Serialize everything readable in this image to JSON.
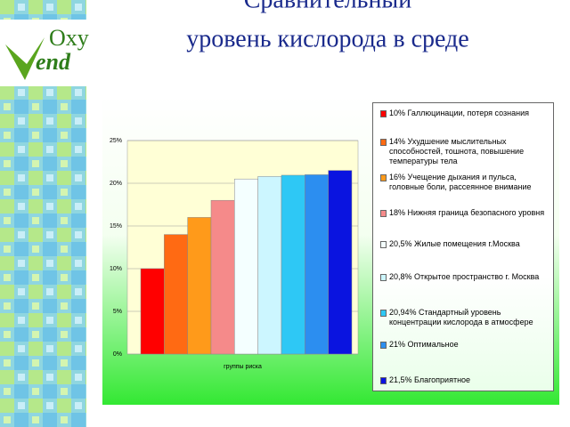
{
  "header": {
    "title_line1": "Сравнительный",
    "title_line2": "уровень кислорода в среде"
  },
  "logo": {
    "top": "Oxy",
    "bottom": "end"
  },
  "chart_data": {
    "type": "bar",
    "categories": [
      "группы риска"
    ],
    "series": [
      {
        "name": "10%     Галлюцинации, потеря сознания",
        "color": "#ff0000",
        "values": [
          10
        ]
      },
      {
        "name": "14% Ухудшение мыслительных способностей, тошнота, повышение температуры тела",
        "color": "#ff6a13",
        "values": [
          14
        ]
      },
      {
        "name": "16% Учещение дыхания и пульса, головные боли, рассеянное внимание",
        "color": "#ff9a1a",
        "values": [
          16
        ]
      },
      {
        "name": " 18% Нижняя граница безопасного уровня",
        "color": "#f58a8a",
        "values": [
          18
        ]
      },
      {
        "name": "20,5% Жилые помещения г.Москва",
        "color": "#f4ffff",
        "values": [
          20.5
        ]
      },
      {
        "name": "20,8% Открытое пространство г. Москва",
        "color": "#ccf6ff",
        "values": [
          20.8
        ]
      },
      {
        "name": "20,94% Стандартный уровень концентрации кислорода в атмосфере",
        "color": "#2ec8f5",
        "values": [
          20.94
        ]
      },
      {
        "name": " 21%  Оптимальное",
        "color": "#2c8ef0",
        "values": [
          21
        ]
      },
      {
        "name": "21,5% Благоприятное",
        "color": "#0a14e0",
        "values": [
          21.5
        ]
      }
    ],
    "ylim": [
      0,
      25
    ],
    "yticks": [
      {
        "value": 0,
        "label": "0%"
      },
      {
        "value": 5,
        "label": "5%"
      },
      {
        "value": 10,
        "label": "10%"
      },
      {
        "value": 15,
        "label": "15%"
      },
      {
        "value": 20,
        "label": "20%"
      },
      {
        "value": 25,
        "label": "25%"
      }
    ],
    "grid": true
  }
}
